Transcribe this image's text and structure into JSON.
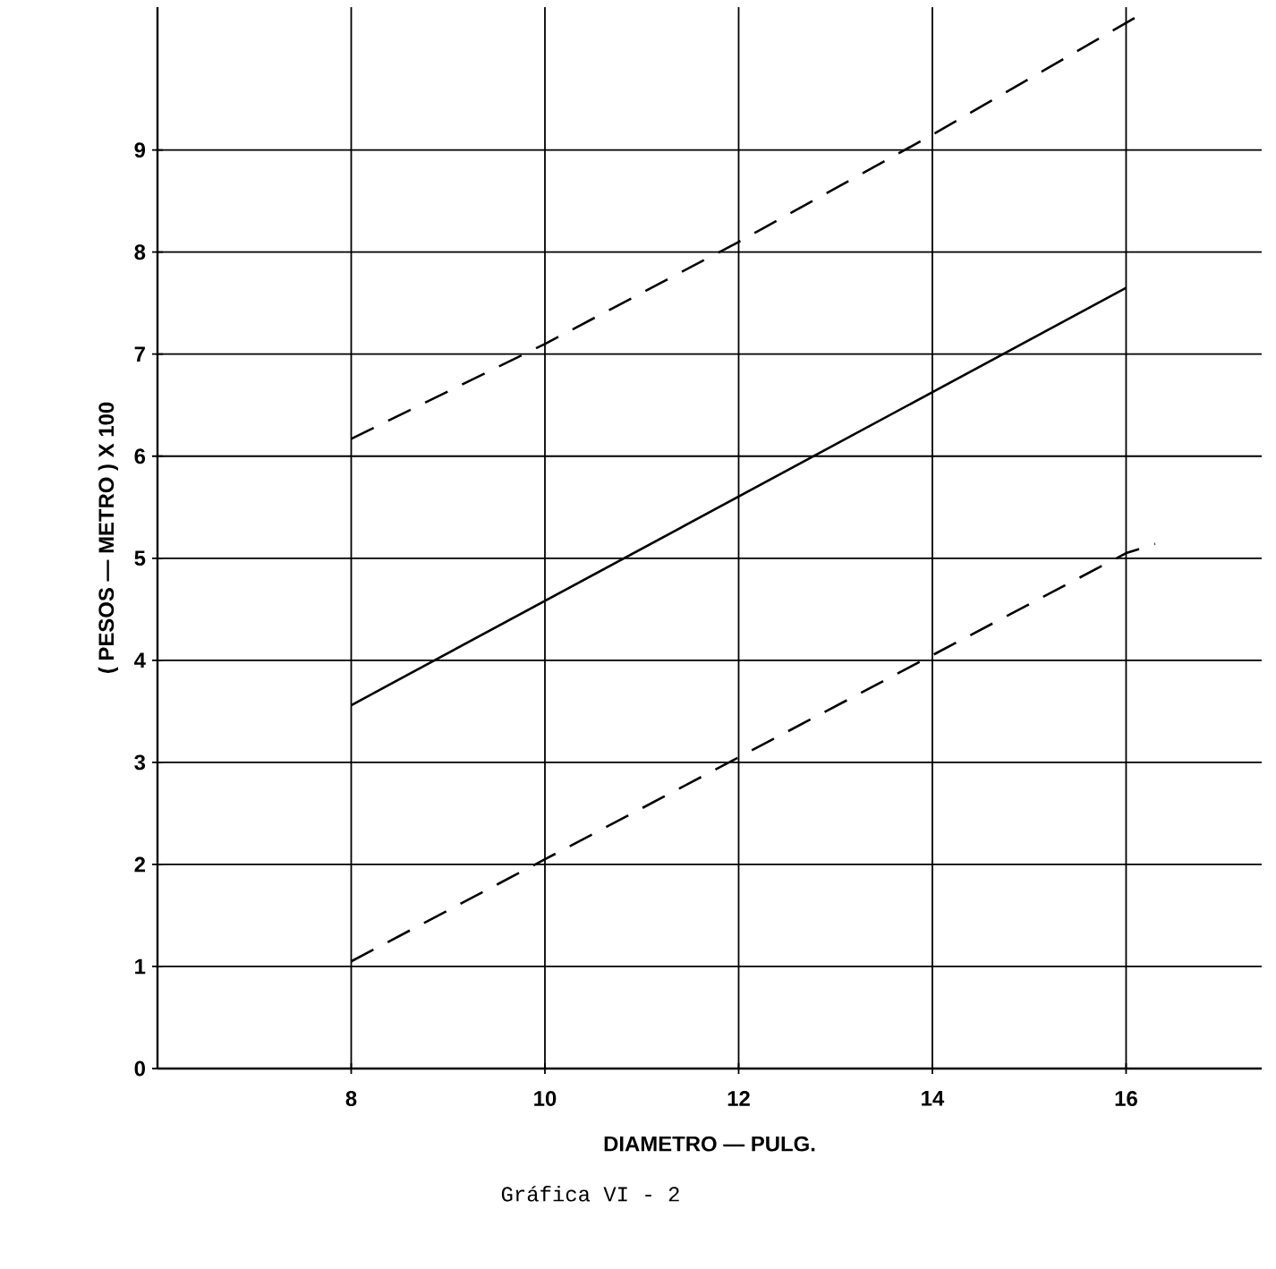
{
  "chart_data": {
    "type": "line",
    "xlabel": "DIAMETRO — PULG.",
    "ylabel": "( PESOS — METRO ) X 100",
    "annotations": [
      "Gráfica VI - 2"
    ],
    "xlim": [
      6,
      17.4
    ],
    "ylim": [
      0,
      10.4
    ],
    "xticks": [
      8,
      10,
      12,
      14,
      16
    ],
    "yticks": [
      0,
      1,
      2,
      3,
      4,
      5,
      6,
      7,
      8,
      9
    ],
    "grid": true,
    "marker": "none",
    "series": [
      {
        "color": "#000000",
        "line_style": "dashed",
        "x": [
          8,
          10,
          12,
          14,
          16.1
        ],
        "values": [
          6.17,
          7.1,
          8.1,
          9.15,
          10.3
        ]
      },
      {
        "color": "#000000",
        "line_style": "solid",
        "x": [
          8,
          16
        ],
        "values": [
          3.56,
          7.65
        ]
      },
      {
        "color": "#000000",
        "line_style": "dashed",
        "x": [
          8,
          10,
          12,
          14,
          16,
          16.3
        ],
        "values": [
          1.05,
          2.05,
          3.05,
          4.05,
          5.05,
          5.14
        ]
      }
    ]
  }
}
